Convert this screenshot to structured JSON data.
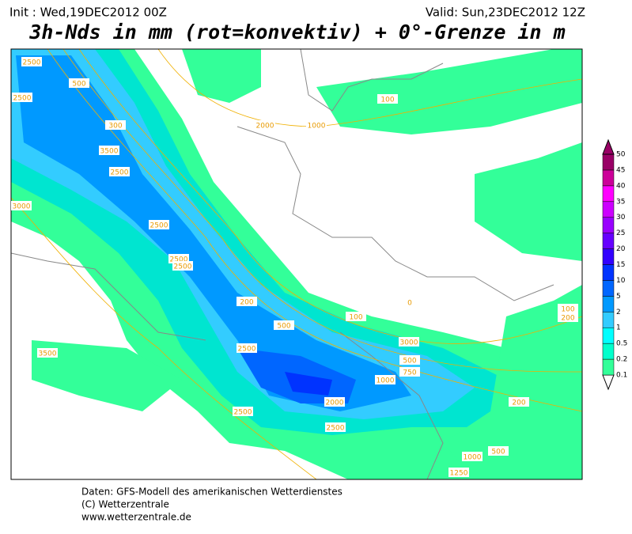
{
  "header": {
    "init": "Init : Wed,19DEC2012 00Z",
    "valid": "Valid: Sun,23DEC2012 12Z",
    "title": "3h-Nds in mm (rot=konvektiv) + 0°-Grenze in m"
  },
  "map": {
    "contour_labels": [
      "2500",
      "500",
      "2500",
      "300",
      "3500",
      "2500",
      "3000",
      "2500",
      "2500",
      "2500",
      "200",
      "500",
      "100",
      "3000",
      "2500",
      "500",
      "750",
      "1000",
      "2000",
      "2500",
      "2500",
      "200",
      "100",
      "200",
      "1000",
      "1250",
      "500",
      "3500",
      "100",
      "1000",
      "2000",
      "0"
    ]
  },
  "legend": {
    "levels": [
      "0.1",
      "0.2",
      "0.5",
      "1",
      "2",
      "5",
      "10",
      "15",
      "20",
      "25",
      "30",
      "35",
      "40",
      "45",
      "50"
    ],
    "colors": [
      "#33ff99",
      "#00ffcc",
      "#00ffff",
      "#33ccff",
      "#0099ff",
      "#0066ff",
      "#0033ff",
      "#3300ff",
      "#6600ff",
      "#9900ff",
      "#cc00ff",
      "#ff00ff",
      "#cc0099",
      "#990066"
    ]
  },
  "footer": [
    "Daten: GFS-Modell des amerikanischen Wetterdienstes",
    "(C) Wetterzentrale",
    "www.wetterzentrale.de"
  ]
}
